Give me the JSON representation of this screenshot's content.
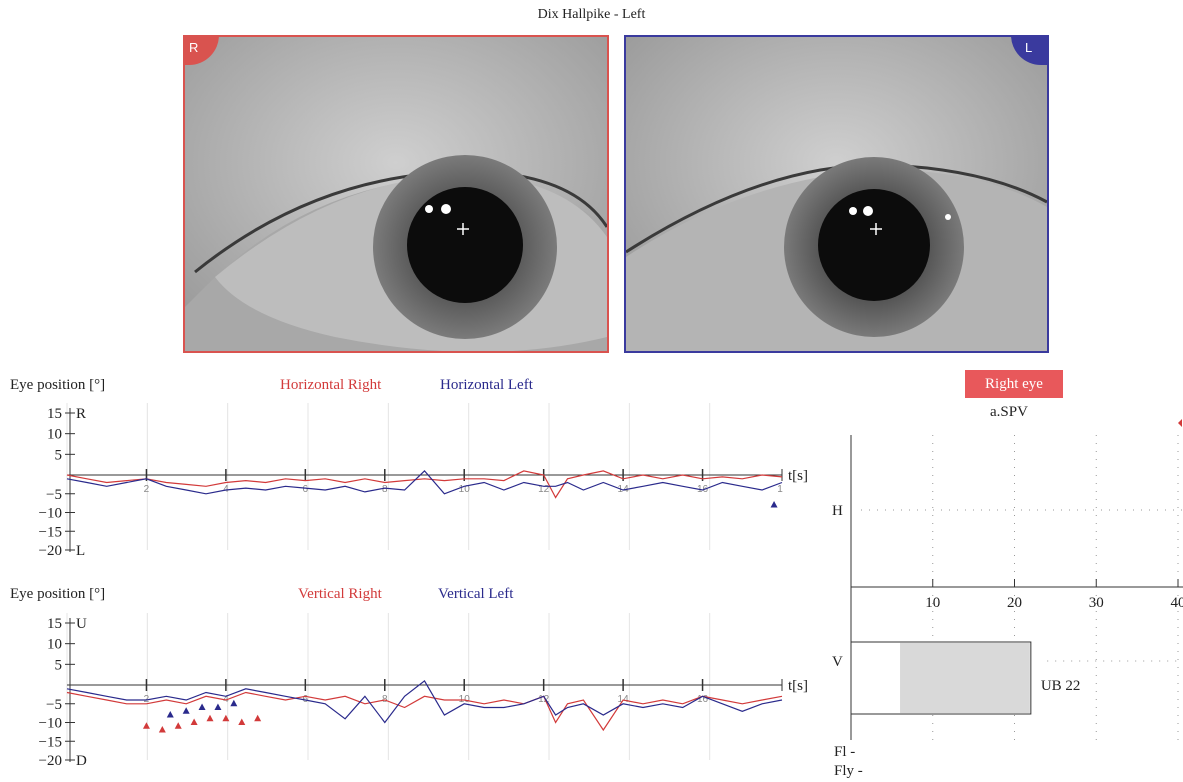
{
  "title": "Dix Hallpike - Left",
  "eye_images": {
    "right": {
      "corner": "R",
      "frame_color": "#d9534f"
    },
    "left": {
      "corner": "L",
      "frame_color": "#3a3a9e"
    }
  },
  "colors": {
    "right": "#d23a3a",
    "left": "#2a2a8c",
    "accent": "#e8585b",
    "grey_bar": "#d9d9d9"
  },
  "chart_data": [
    {
      "type": "line",
      "ylabel": "Eye position [°]",
      "xlabel": "t[s]",
      "xlim": [
        0,
        18
      ],
      "ylim": [
        -20,
        15
      ],
      "yticks": [
        "15",
        "10",
        "5",
        "−5",
        "−10",
        "−15",
        "−20"
      ],
      "ytick_values": [
        15,
        10,
        5,
        -5,
        -10,
        -15,
        -20
      ],
      "direction_top": "R",
      "direction_bottom": "L",
      "xticks": [
        2,
        4,
        6,
        8,
        10,
        12,
        14,
        16
      ],
      "x_end_tick": "1",
      "series": [
        {
          "name": "Horizontal Right",
          "color": "#d23a3a",
          "x": [
            0,
            0.5,
            1,
            1.5,
            2,
            2.5,
            3,
            3.5,
            4,
            4.5,
            5,
            5.5,
            6,
            6.5,
            7,
            7.5,
            8,
            8.5,
            9,
            9.5,
            10,
            10.5,
            11,
            11.5,
            12,
            12.3,
            12.6,
            13,
            13.5,
            14,
            14.5,
            15,
            15.5,
            16,
            16.5,
            17,
            17.5,
            18
          ],
          "values": [
            0,
            -1,
            -2,
            -1.5,
            -1,
            -2,
            -2.5,
            -3,
            -2,
            -1.5,
            -2,
            -1,
            -1.5,
            -1,
            -2,
            -1,
            -2,
            -1.5,
            -1,
            -1.5,
            -1,
            -1,
            -1.5,
            1,
            0,
            -6,
            -1,
            0,
            1,
            -1,
            0,
            -1,
            0,
            -1,
            -0.5,
            -1,
            0,
            -0.5
          ]
        },
        {
          "name": "Horizontal Left",
          "color": "#2a2a8c",
          "x": [
            0,
            0.5,
            1,
            1.5,
            2,
            2.5,
            3,
            3.5,
            4,
            4.5,
            5,
            5.5,
            6,
            6.5,
            7,
            7.5,
            8,
            8.5,
            9,
            9.5,
            10,
            10.5,
            11,
            11.5,
            12,
            12.3,
            12.6,
            13,
            13.5,
            14,
            14.5,
            15,
            15.5,
            16,
            16.5,
            17,
            17.5,
            18
          ],
          "values": [
            -1,
            -2,
            -3,
            -2,
            -1,
            -3,
            -4,
            -5,
            -4,
            -3.5,
            -4,
            -3,
            -3.5,
            -4,
            -3,
            -4.5,
            -3.5,
            -4,
            1,
            -5,
            -3,
            -2,
            -4,
            -2,
            -3,
            -3,
            -2,
            -4,
            -2,
            -4,
            -3,
            -2,
            -3,
            -4,
            -2,
            -3,
            -4,
            -2
          ]
        }
      ],
      "markers": [
        {
          "series": "Horizontal Left",
          "x": [
            17.8
          ],
          "y": [
            -8
          ]
        }
      ]
    },
    {
      "type": "line",
      "ylabel": "Eye position [°]",
      "xlabel": "t[s]",
      "xlim": [
        0,
        18
      ],
      "ylim": [
        -20,
        15
      ],
      "yticks": [
        "15",
        "10",
        "5",
        "−5",
        "−10",
        "−15",
        "−20"
      ],
      "ytick_values": [
        15,
        10,
        5,
        -5,
        -10,
        -15,
        -20
      ],
      "direction_top": "U",
      "direction_bottom": "D",
      "xticks": [
        2,
        4,
        6,
        8,
        10,
        12,
        14,
        16
      ],
      "series": [
        {
          "name": "Vertical Right",
          "color": "#d23a3a",
          "x": [
            0,
            0.5,
            1,
            1.5,
            2,
            2.5,
            3,
            3.5,
            4,
            4.5,
            5,
            5.5,
            6,
            6.5,
            7,
            7.5,
            8,
            8.5,
            9,
            9.5,
            10,
            10.5,
            11,
            11.5,
            12,
            12.3,
            12.6,
            13,
            13.5,
            14,
            14.5,
            15,
            15.5,
            16,
            16.5,
            17,
            17.5,
            18
          ],
          "values": [
            -2,
            -3,
            -4,
            -5,
            -5,
            -4,
            -5,
            -3,
            -4,
            -2,
            -3,
            -4,
            -3,
            -4,
            -3,
            -5,
            -4,
            -6,
            -3,
            -4,
            -4,
            -5,
            -4,
            -5,
            -3,
            -10,
            -5,
            -4,
            -12,
            -4,
            -5,
            -4,
            -5,
            -3,
            -4,
            -5,
            -4,
            -3
          ]
        },
        {
          "name": "Vertical Left",
          "color": "#2a2a8c",
          "x": [
            0,
            0.5,
            1,
            1.5,
            2,
            2.5,
            3,
            3.5,
            4,
            4.5,
            5,
            5.5,
            6,
            6.5,
            7,
            7.5,
            8,
            8.5,
            9,
            9.5,
            10,
            10.5,
            11,
            11.5,
            12,
            12.3,
            12.6,
            13,
            13.5,
            14,
            14.5,
            15,
            15.5,
            16,
            16.5,
            17,
            17.5,
            18
          ],
          "values": [
            -1,
            -2,
            -3,
            -4,
            -4,
            -3,
            -4,
            -2,
            -3,
            -1,
            -2,
            -3,
            -4,
            -5,
            -9,
            -3,
            -10,
            -3,
            1,
            -8,
            -5,
            -6,
            -6,
            -5,
            -3,
            -8,
            -6,
            -5,
            -8,
            -5,
            -6,
            -5,
            -6,
            -3,
            -5,
            -7,
            -5,
            -4
          ]
        }
      ],
      "markers": [
        {
          "series": "Vertical Right",
          "x": [
            2,
            2.4,
            2.8,
            3.2,
            3.6,
            4,
            4.4,
            4.8
          ],
          "y": [
            -11,
            -12,
            -11,
            -10,
            -9,
            -9,
            -10,
            -9
          ]
        },
        {
          "series": "Vertical Left",
          "x": [
            2.6,
            3,
            3.4,
            3.8,
            4.2
          ],
          "y": [
            -8,
            -7,
            -6,
            -6,
            -5
          ]
        }
      ]
    },
    {
      "type": "bar",
      "panel_button": "Right eye",
      "title": "a.SPV",
      "rows": [
        "H",
        "V"
      ],
      "xticks": [
        10,
        20,
        30,
        40
      ],
      "xlim": [
        0,
        40
      ],
      "bars": [
        {
          "row": "V",
          "start": 6,
          "value": 22,
          "label": "UB 22"
        }
      ],
      "footer": [
        "Fl -",
        "Fly -"
      ]
    }
  ]
}
